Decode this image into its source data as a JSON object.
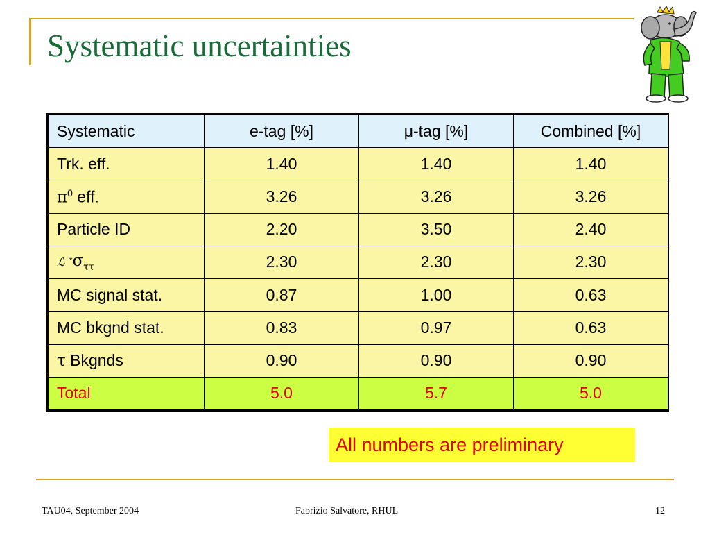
{
  "slide": {
    "title": "Systematic uncertainties",
    "note": "All numbers are preliminary",
    "footer": {
      "left": "TAU04, September  2004",
      "center": "Fabrizio Salvatore, RHUL",
      "right": "12"
    }
  },
  "table": {
    "headers": [
      "Systematic",
      "e-tag [%]",
      "μ-tag [%]",
      "Combined [%]"
    ],
    "rows": [
      {
        "label": "Trk. eff.",
        "values": [
          "1.40",
          "1.40",
          "1.40"
        ]
      },
      {
        "label_symbol": "π",
        "label_sup": "0",
        "label_rest": " eff.",
        "values": [
          "3.26",
          "3.26",
          "3.26"
        ]
      },
      {
        "label": "Particle ID",
        "values": [
          "2.20",
          "3.50",
          "2.40"
        ]
      },
      {
        "label_lum": "ℒ",
        "label_star": "*",
        "label_sigma": "σ",
        "label_sub": "ττ",
        "values": [
          "2.30",
          "2.30",
          "2.30"
        ]
      },
      {
        "label": "MC signal stat.",
        "values": [
          "0.87",
          "1.00",
          "0.63"
        ]
      },
      {
        "label": "MC bkgnd stat.",
        "values": [
          "0.83",
          "0.97",
          "0.63"
        ]
      },
      {
        "label_symbol": "τ",
        "label_rest": " Bkgnds",
        "values": [
          "0.90",
          "0.90",
          "0.90"
        ]
      },
      {
        "label": "Total",
        "values": [
          "5.0",
          "5.7",
          "5.0"
        ]
      }
    ]
  },
  "colors": {
    "title": "#1a6b3a",
    "frame": "#d9a520",
    "header_bg": "#dff1fa",
    "row_bg": "#fbf6a6",
    "total_bg": "#ccff44",
    "total_text": "#e00000",
    "note_bg": "#ffff33"
  },
  "icons": {
    "mascot": "elephant-king-mascot-icon"
  }
}
